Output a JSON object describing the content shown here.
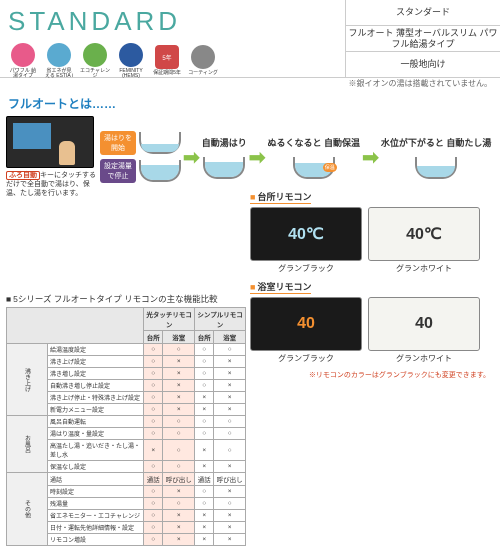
{
  "header": {
    "title": "STANDARD",
    "title_color": "#4aa8a0",
    "right_cells": [
      "スタンダード",
      "フルオート 薄型オーバルスリム\nパワフル給湯タイプ",
      "一般地向け"
    ],
    "ion_note": "※銀イオンの湯は搭載されていません。",
    "icons": [
      {
        "shape": "circle",
        "bg": "#e85a8a",
        "label": "パワフル\n給湯タイプ"
      },
      {
        "shape": "circle",
        "bg": "#5aaad0",
        "label": "省エネが見える\nESTIA i"
      },
      {
        "shape": "circle",
        "bg": "#6ab04c",
        "label": "エコチャレンジ"
      },
      {
        "shape": "circle",
        "bg": "#2c5aa0",
        "label": "FEMINITY\n(HEMS)"
      },
      {
        "shape": "square",
        "bg": "#d04848",
        "text": "5年",
        "label": "保証期間5年"
      },
      {
        "shape": "circle",
        "bg": "#888888",
        "label": "コーティング"
      }
    ]
  },
  "fullauto": {
    "title": "フルオートとは……",
    "title_color": "#2080c0",
    "remote_key": "ふろ自動",
    "remote_desc": "キーにタッチするだけで全自動で湯はり、保温、たし湯を行います。",
    "steps": [
      {
        "title": "",
        "label1": "湯はりを\n開始",
        "label1_bg": "#f49030",
        "water1": 40,
        "label2": "設定湯量\nで停止",
        "label2_bg": "#6a4a8a",
        "water2": 75
      },
      {
        "title": "自動湯はり",
        "water": 75
      },
      {
        "title": "ぬるくなると\n自動保温",
        "badge": "保温",
        "badge_bg": "#f49030",
        "water": 70
      },
      {
        "title": "水位が下がると\n自動たし湯",
        "water": 55
      }
    ]
  },
  "remotes": {
    "kitchen": {
      "title": "台所リモコン",
      "items": [
        {
          "bg": "#1a1a1a",
          "fg": "#b0e0f0",
          "temp": "40℃",
          "caption": "グランブラック"
        },
        {
          "bg": "#f4f4f0",
          "fg": "#333",
          "temp": "40℃",
          "caption": "グランホワイト"
        }
      ]
    },
    "bath": {
      "title": "浴室リモコン",
      "items": [
        {
          "bg": "#1a1a1a",
          "fg": "#f49030",
          "temp": "40",
          "caption": "グランブラック"
        },
        {
          "bg": "#f4f4f0",
          "fg": "#333",
          "temp": "40",
          "caption": "グランホワイト"
        }
      ]
    },
    "note": "※リモコンのカラーはグランブラックにも変更できます。"
  },
  "compare": {
    "title": "5シリーズ フルオートタイプ\nリモコンの主な機能比較",
    "col_groups": [
      "光タッチリモコン",
      "シンプルリモコン"
    ],
    "sub_cols": [
      "台所",
      "浴室",
      "台所",
      "浴室"
    ],
    "cats": [
      {
        "name": "沸き上げ",
        "rows": [
          {
            "label": "給湯温度設定",
            "v": [
              "○",
              "○",
              "○",
              "○"
            ]
          },
          {
            "label": "沸き上げ設定",
            "v": [
              "○",
              "×",
              "○",
              "×"
            ]
          },
          {
            "label": "沸き増し設定",
            "v": [
              "○",
              "×",
              "○",
              "×"
            ]
          },
          {
            "label": "自動沸き増し停止設定",
            "v": [
              "○",
              "×",
              "○",
              "×"
            ]
          },
          {
            "label": "沸き上げ停止・特殊沸き上げ設定",
            "v": [
              "○",
              "×",
              "×",
              "×"
            ]
          },
          {
            "label": "新電力メニュー設定",
            "v": [
              "○",
              "×",
              "×",
              "×"
            ]
          }
        ]
      },
      {
        "name": "お風呂",
        "rows": [
          {
            "label": "風呂自動運転",
            "v": [
              "○",
              "○",
              "○",
              "○"
            ]
          },
          {
            "label": "湯はり温度・量設定",
            "v": [
              "○",
              "○",
              "○",
              "○"
            ]
          },
          {
            "label": "高温たし湯・追いだき・たし湯・差し水",
            "v": [
              "×",
              "○",
              "×",
              "○"
            ]
          },
          {
            "label": "保温なし設定",
            "v": [
              "○",
              "○",
              "×",
              "×"
            ]
          }
        ]
      },
      {
        "name": "その他",
        "rows": [
          {
            "label": "通話",
            "v": [
              "通話",
              "呼び出し",
              "通話",
              "呼び出し"
            ]
          },
          {
            "label": "時刻設定",
            "v": [
              "○",
              "×",
              "○",
              "×"
            ]
          },
          {
            "label": "残湯量",
            "v": [
              "○",
              "○",
              "○",
              "○"
            ]
          },
          {
            "label": "省エネモニター・エコチャレンジ",
            "v": [
              "○",
              "×",
              "×",
              "×"
            ]
          },
          {
            "label": "日付・運転先他詳細情報・設定",
            "v": [
              "○",
              "×",
              "×",
              "×"
            ]
          },
          {
            "label": "リモコン増設",
            "v": [
              "○",
              "×",
              "×",
              "×"
            ]
          }
        ]
      }
    ]
  }
}
